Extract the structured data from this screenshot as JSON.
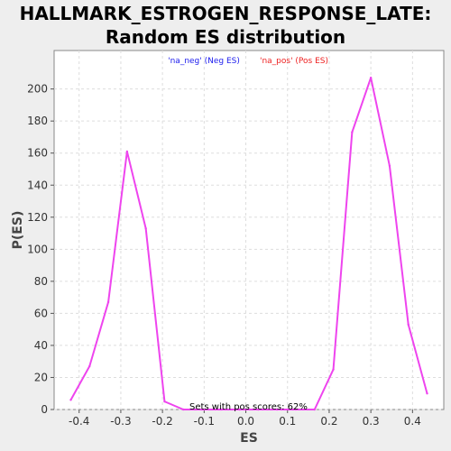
{
  "chart_data": {
    "type": "line",
    "title_line1": "HALLMARK_ESTROGEN_RESPONSE_LATE:",
    "title_line2": "Random ES distribution",
    "xlabel": "ES",
    "ylabel": "P(ES)",
    "xlim": [
      -0.46,
      0.475
    ],
    "ylim": [
      0,
      224
    ],
    "x_ticks": [
      -0.4,
      -0.3,
      -0.2,
      -0.1,
      0.0,
      0.1,
      0.2,
      0.3,
      0.4
    ],
    "x_tick_labels": [
      "-0.4",
      "-0.3",
      "-0.2",
      "-0.1",
      "0.0",
      "0.1",
      "0.2",
      "0.3",
      "0.4"
    ],
    "y_ticks": [
      0,
      20,
      40,
      60,
      80,
      100,
      120,
      140,
      160,
      180,
      200
    ],
    "grid": true,
    "legend_position": "top",
    "legend": [
      {
        "label": "'na_neg' (Neg ES)",
        "color": "#2020ee"
      },
      {
        "label": "'na_pos' (Pos ES)",
        "color": "#ee2020"
      }
    ],
    "line_color": "#ee44ee",
    "series": [
      {
        "x": [
          -0.42,
          -0.375,
          -0.33,
          -0.285,
          -0.24,
          -0.195,
          -0.15,
          -0.105,
          -0.06,
          -0.015,
          0.03,
          0.075,
          0.12,
          0.165,
          0.21,
          0.255,
          0.3,
          0.345,
          0.39,
          0.435
        ],
        "y": [
          6,
          27,
          67,
          161,
          113,
          5,
          0,
          0,
          0,
          0,
          0,
          0,
          0,
          0,
          25,
          173,
          207,
          152,
          53,
          10
        ]
      }
    ],
    "annotation": "Sets with pos scores: 62%"
  }
}
